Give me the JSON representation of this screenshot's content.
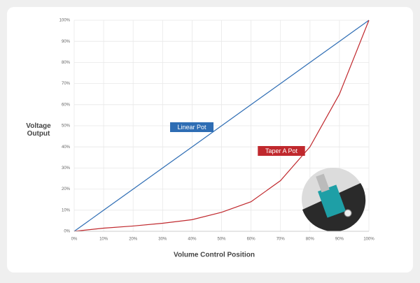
{
  "chart_data": {
    "type": "line",
    "xlabel": "Volume Control Position",
    "ylabel": "Voltage Output",
    "x": [
      0,
      10,
      20,
      30,
      40,
      50,
      60,
      70,
      80,
      90,
      100
    ],
    "series": [
      {
        "name": "Linear Pot",
        "color": "#2e6db4",
        "values": [
          0,
          10,
          20,
          30,
          40,
          50,
          60,
          70,
          80,
          90,
          100
        ]
      },
      {
        "name": "Taper A Pot",
        "color": "#c0282d",
        "values": [
          0,
          1.5,
          2.5,
          3.8,
          5.5,
          9,
          14,
          24,
          40,
          65,
          100
        ]
      }
    ],
    "xlim": [
      0,
      100
    ],
    "ylim": [
      0,
      100
    ],
    "xticks": [
      {
        "value": 0,
        "label": "0%"
      },
      {
        "value": 10,
        "label": "10%"
      },
      {
        "value": 20,
        "label": "20%"
      },
      {
        "value": 30,
        "label": "30%"
      },
      {
        "value": 40,
        "label": "40%"
      },
      {
        "value": 50,
        "label": "50%"
      },
      {
        "value": 60,
        "label": "60%"
      },
      {
        "value": 70,
        "label": "70%"
      },
      {
        "value": 80,
        "label": "80%"
      },
      {
        "value": 90,
        "label": "90%"
      },
      {
        "value": 100,
        "label": "100%"
      }
    ],
    "yticks": [
      {
        "value": 0,
        "label": "0%"
      },
      {
        "value": 10,
        "label": "10%"
      },
      {
        "value": 20,
        "label": "20%"
      },
      {
        "value": 30,
        "label": "30%"
      },
      {
        "value": 40,
        "label": "40%"
      },
      {
        "value": 50,
        "label": "50%"
      },
      {
        "value": 60,
        "label": "60%"
      },
      {
        "value": 70,
        "label": "70%"
      },
      {
        "value": 80,
        "label": "80%"
      },
      {
        "value": 90,
        "label": "90%"
      },
      {
        "value": 100,
        "label": "100%"
      }
    ],
    "grid": true
  }
}
